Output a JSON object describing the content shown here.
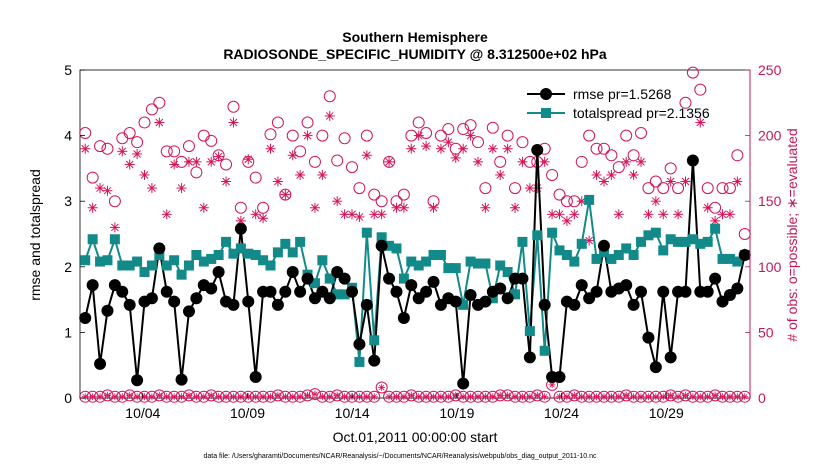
{
  "chart_data": {
    "type": "line",
    "title_line1": "Southern Hemisphere",
    "title_line2": "RADIOSONDE_SPECIFIC_HUMIDITY @ 8.312500e+02 hPa",
    "xlabel": "Oct.01,2011 00:00:00 start",
    "ylabel_left": "rmse and totalspread",
    "ylabel_right": "# of obs: o=possible; ∗=evaluated",
    "footnote": "data file: /Users/gharamti/Documents/NCAR/Reanalysis/~/Documents/NCAR/Reanalysis/webpub/obs_diag_output_2011-10.nc",
    "x_tick_labels": [
      "10/04",
      "10/09",
      "10/14",
      "10/19",
      "10/24",
      "10/29"
    ],
    "x_tick_days": [
      4,
      9,
      14,
      19,
      24,
      29
    ],
    "xlim": [
      1,
      33
    ],
    "ylim_left": [
      0,
      5
    ],
    "yticks_left": [
      "0",
      "1",
      "2",
      "3",
      "4",
      "5"
    ],
    "ylim_right": [
      0,
      250
    ],
    "yticks_right": [
      "0",
      "50",
      "100",
      "150",
      "200",
      "250"
    ],
    "colors": {
      "rmse": "#000000",
      "spread": "#138a8a",
      "obs": "#d4145a",
      "right_axis": "#c2185b"
    },
    "series": [
      {
        "name": "rmse pr=1.5268",
        "axis": "left",
        "values": [
          1.22,
          1.72,
          0.52,
          1.33,
          1.72,
          1.62,
          1.42,
          0.27,
          1.47,
          1.52,
          2.28,
          1.62,
          1.47,
          0.28,
          1.32,
          1.52,
          1.72,
          1.67,
          1.92,
          1.47,
          1.42,
          2.58,
          1.47,
          0.32,
          1.62,
          1.62,
          1.42,
          1.62,
          1.92,
          1.62,
          1.82,
          1.52,
          1.62,
          1.52,
          1.92,
          1.82,
          1.62,
          0.82,
          1.42,
          0.57,
          2.32,
          1.82,
          1.62,
          1.22,
          1.72,
          1.52,
          1.62,
          1.77,
          1.42,
          1.52,
          1.47,
          0.22,
          1.57,
          1.42,
          1.47,
          1.62,
          1.67,
          1.52,
          1.82,
          1.82,
          0.62,
          3.78,
          1.42,
          0.32,
          0.32,
          1.47,
          1.42,
          1.72,
          1.52,
          1.62,
          2.32,
          1.62,
          1.67,
          1.72,
          1.42,
          1.62,
          0.92,
          0.47,
          1.62,
          0.62,
          1.62,
          1.62,
          3.62,
          1.62,
          1.62,
          1.82,
          1.47,
          1.57,
          1.67,
          2.18
        ]
      },
      {
        "name": "totalspread pr=2.1356",
        "axis": "left",
        "values": [
          2.1,
          2.42,
          2.08,
          2.1,
          2.42,
          2.02,
          2.02,
          2.08,
          1.92,
          2.02,
          2.18,
          2.02,
          2.1,
          1.88,
          2.02,
          2.18,
          2.08,
          2.12,
          2.18,
          2.38,
          2.2,
          2.28,
          2.2,
          2.18,
          2.1,
          2.02,
          2.22,
          2.35,
          2.22,
          2.38,
          1.88,
          1.75,
          2.1,
          1.82,
          1.58,
          1.58,
          1.68,
          0.55,
          2.52,
          0.88,
          2.45,
          2.32,
          2.28,
          1.82,
          2.08,
          2.02,
          2.08,
          2.18,
          2.18,
          1.98,
          1.98,
          1.42,
          2.08,
          2.05,
          2.05,
          1.52,
          2.02,
          1.92,
          1.58,
          2.38,
          1.02,
          2.48,
          0.72,
          2.52,
          2.25,
          2.18,
          2.08,
          2.35,
          3.02,
          2.12,
          2.22,
          2.12,
          2.18,
          2.28,
          2.18,
          2.38,
          2.48,
          2.52,
          2.25,
          2.42,
          2.38,
          2.38,
          2.42,
          2.35,
          2.38,
          2.58,
          2.12,
          2.12,
          2.08,
          2.18
        ]
      },
      {
        "name": "obs possible",
        "axis": "right",
        "marker": "o",
        "values": [
          202,
          168,
          192,
          190,
          150,
          198,
          202,
          195,
          210,
          220,
          225,
          188,
          188,
          180,
          192,
          172,
          200,
          196,
          185,
          178,
          222,
          145,
          180,
          168,
          145,
          201,
          210,
          155,
          200,
          188,
          210,
          180,
          200,
          230,
          181,
          198,
          176,
          160,
          200,
          155,
          150,
          180,
          150,
          155,
          200,
          210,
          202,
          150,
          200,
          205,
          190,
          205,
          208,
          195,
          160,
          206,
          180,
          200,
          160,
          195,
          180,
          180,
          190,
          170,
          155,
          150,
          150,
          180,
          200,
          190,
          190,
          185,
          176,
          200,
          185,
          202,
          160,
          165,
          160,
          175,
          160,
          225,
          248,
          235,
          160,
          145,
          160,
          160,
          185,
          125
        ]
      },
      {
        "name": "obs evaluated",
        "axis": "right",
        "marker": "asterisk",
        "values": [
          190,
          145,
          160,
          158,
          130,
          188,
          178,
          186,
          170,
          160,
          210,
          140,
          178,
          160,
          180,
          180,
          145,
          180,
          184,
          165,
          210,
          135,
          182,
          140,
          137,
          190,
          165,
          155,
          185,
          170,
          200,
          145,
          170,
          215,
          150,
          140,
          140,
          138,
          185,
          140,
          140,
          180,
          145,
          145,
          190,
          200,
          192,
          145,
          190,
          195,
          183,
          190,
          200,
          180,
          145,
          190,
          170,
          190,
          145,
          180,
          160,
          160,
          180,
          140,
          140,
          135,
          140,
          150,
          120,
          170,
          165,
          170,
          140,
          180,
          170,
          180,
          140,
          150,
          140,
          165,
          140,
          165,
          180,
          210,
          145,
          135,
          140,
          140,
          165,
          110
        ]
      },
      {
        "name": "obs possible low",
        "axis": "right",
        "marker": "o",
        "values": [
          1,
          1,
          1,
          2,
          1,
          1,
          2,
          1,
          1,
          1,
          2,
          1,
          1,
          1,
          2,
          1,
          1,
          2,
          1,
          1,
          1,
          1,
          1,
          1,
          1,
          1,
          2,
          1,
          1,
          1,
          2,
          3,
          1,
          1,
          2,
          1,
          1,
          1,
          1,
          1,
          8,
          1,
          1,
          1,
          2,
          1,
          1,
          1,
          1,
          1,
          2,
          1,
          1,
          1,
          1,
          1,
          2,
          2,
          1,
          1,
          1,
          2,
          1,
          10,
          1,
          1,
          2,
          1,
          1,
          1,
          1,
          1,
          1,
          2,
          1,
          1,
          1,
          1,
          1,
          2,
          1,
          2,
          1,
          1,
          1,
          2,
          1,
          1,
          1,
          1
        ]
      }
    ]
  }
}
